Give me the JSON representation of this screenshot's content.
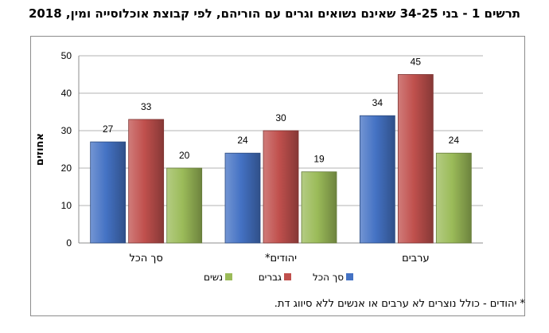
{
  "chart_data": {
    "type": "bar",
    "title": "תרשים 1 - בני 34-25 שאינם נשואים וגרים עם הוריהם, לפי קבוצת אוכלוסייה ומין, 2018",
    "ylabel": "אחוזים",
    "xlabel": "",
    "ylim": [
      0,
      50
    ],
    "yticks": [
      0,
      10,
      20,
      30,
      40,
      50
    ],
    "categories": [
      "סך הכל",
      "יהודים*",
      "ערבים"
    ],
    "series": [
      {
        "name": "סך הכל",
        "color": "#4472c4",
        "values": [
          27,
          24,
          34
        ]
      },
      {
        "name": "גברים",
        "color": "#c0504d",
        "values": [
          33,
          30,
          45
        ]
      },
      {
        "name": "נשים",
        "color": "#9bbb59",
        "values": [
          20,
          19,
          24
        ]
      }
    ],
    "legend_position": "bottom"
  },
  "footnote": "* יהודים - כולל  נוצרים לא ערבים או אנשים ללא סיווג דת."
}
